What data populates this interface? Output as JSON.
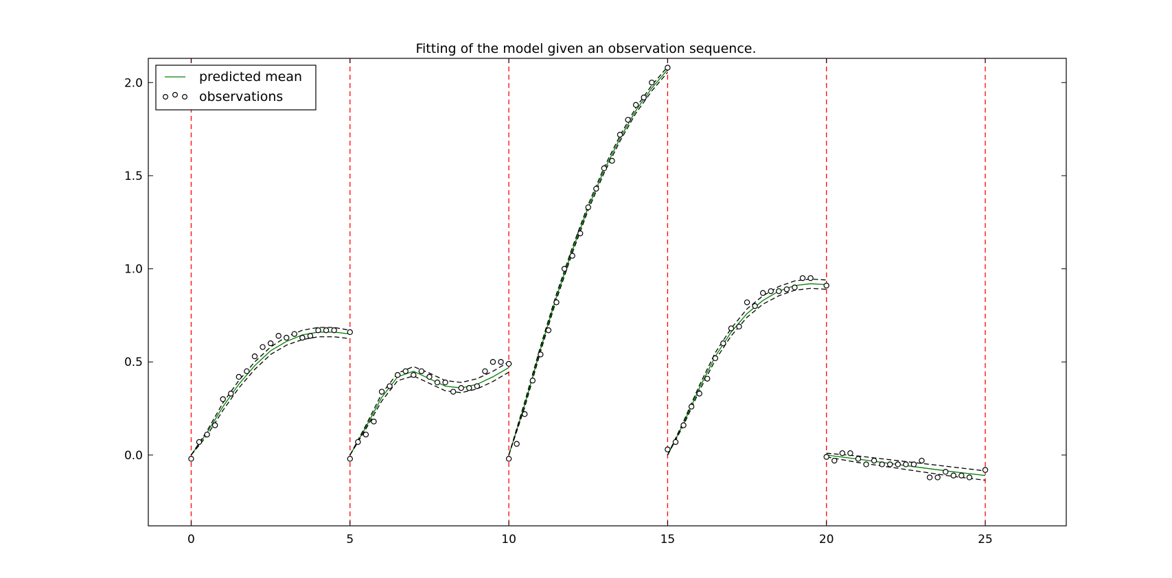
{
  "chart_data": {
    "type": "line",
    "title": "Fitting of the model given an observation sequence.",
    "xlabel": "",
    "ylabel": "",
    "xlim": [
      -1.35,
      27.55
    ],
    "ylim": [
      -0.38,
      2.13
    ],
    "x_ticks": [
      "0",
      "5",
      "10",
      "15",
      "20",
      "25"
    ],
    "y_ticks": [
      "0.0",
      "0.5",
      "1.0",
      "1.5",
      "2.0"
    ],
    "grid": false,
    "legend_location": "upper-left",
    "legend": [
      {
        "label": "predicted mean",
        "style": "green solid line"
      },
      {
        "label": "observations",
        "style": "open black circles"
      }
    ],
    "colors": {
      "predicted_mean": "#008000",
      "confidence_band": "#000000",
      "segment_boundary": "#ff0000",
      "observations": "#000000"
    },
    "segment_boundaries": [
      0,
      5,
      10,
      15,
      20,
      25
    ],
    "series": [
      {
        "name": "predicted mean",
        "kind": "line",
        "segments": [
          {
            "x": [
              0,
              0.5,
              1,
              1.5,
              2,
              2.5,
              3,
              3.5,
              4,
              4.5,
              5
            ],
            "y": [
              0.0,
              0.12,
              0.26,
              0.38,
              0.48,
              0.56,
              0.61,
              0.645,
              0.66,
              0.66,
              0.65
            ]
          },
          {
            "x": [
              5,
              5.5,
              6,
              6.5,
              7,
              7.5,
              8,
              8.5,
              9,
              9.5,
              10
            ],
            "y": [
              0.0,
              0.15,
              0.31,
              0.42,
              0.45,
              0.41,
              0.37,
              0.36,
              0.38,
              0.42,
              0.47
            ]
          },
          {
            "x": [
              10,
              10.5,
              11,
              11.5,
              12,
              12.5,
              13,
              13.5,
              14,
              14.5,
              15
            ],
            "y": [
              0.0,
              0.27,
              0.57,
              0.85,
              1.1,
              1.33,
              1.53,
              1.7,
              1.85,
              1.97,
              2.07
            ]
          },
          {
            "x": [
              15,
              15.5,
              16,
              16.5,
              17,
              17.5,
              18,
              18.5,
              19,
              19.5,
              20
            ],
            "y": [
              0.0,
              0.17,
              0.36,
              0.53,
              0.66,
              0.76,
              0.83,
              0.88,
              0.91,
              0.92,
              0.915
            ]
          },
          {
            "x": [
              20,
              21,
              22,
              23,
              24,
              25
            ],
            "y": [
              0.0,
              -0.022,
              -0.045,
              -0.068,
              -0.09,
              -0.11
            ]
          }
        ]
      },
      {
        "name": "",
        "kind": "confidence-upper",
        "segments": [
          {
            "x": [
              0,
              0.5,
              1,
              1.5,
              2,
              2.5,
              3,
              3.5,
              4,
              4.5,
              5
            ],
            "y": [
              0.0,
              0.13,
              0.28,
              0.4,
              0.5,
              0.58,
              0.635,
              0.67,
              0.685,
              0.685,
              0.67
            ]
          },
          {
            "x": [
              5,
              5.5,
              6,
              6.5,
              7,
              7.5,
              8,
              8.5,
              9,
              9.5,
              10
            ],
            "y": [
              0.0,
              0.16,
              0.33,
              0.44,
              0.475,
              0.44,
              0.4,
              0.39,
              0.41,
              0.45,
              0.5
            ]
          },
          {
            "x": [
              10,
              10.5,
              11,
              11.5,
              12,
              12.5,
              13,
              13.5,
              14,
              14.5,
              15
            ],
            "y": [
              0.0,
              0.285,
              0.585,
              0.865,
              1.115,
              1.345,
              1.545,
              1.715,
              1.865,
              1.985,
              2.085
            ]
          },
          {
            "x": [
              15,
              15.5,
              16,
              16.5,
              17,
              17.5,
              18,
              18.5,
              19,
              19.5,
              20
            ],
            "y": [
              0.0,
              0.18,
              0.375,
              0.55,
              0.68,
              0.785,
              0.855,
              0.905,
              0.935,
              0.945,
              0.94
            ]
          },
          {
            "x": [
              20,
              21,
              22,
              23,
              24,
              25
            ],
            "y": [
              0.01,
              -0.005,
              -0.025,
              -0.045,
              -0.065,
              -0.085
            ]
          }
        ]
      },
      {
        "name": "",
        "kind": "confidence-lower",
        "segments": [
          {
            "x": [
              0,
              0.5,
              1,
              1.5,
              2,
              2.5,
              3,
              3.5,
              4,
              4.5,
              5
            ],
            "y": [
              0.0,
              0.105,
              0.24,
              0.36,
              0.46,
              0.54,
              0.59,
              0.62,
              0.635,
              0.635,
              0.625
            ]
          },
          {
            "x": [
              5,
              5.5,
              6,
              6.5,
              7,
              7.5,
              8,
              8.5,
              9,
              9.5,
              10
            ],
            "y": [
              0.0,
              0.14,
              0.29,
              0.4,
              0.425,
              0.385,
              0.345,
              0.335,
              0.355,
              0.395,
              0.445
            ]
          },
          {
            "x": [
              10,
              10.5,
              11,
              11.5,
              12,
              12.5,
              13,
              13.5,
              14,
              14.5,
              15
            ],
            "y": [
              0.0,
              0.255,
              0.555,
              0.835,
              1.085,
              1.315,
              1.515,
              1.685,
              1.835,
              1.955,
              2.055
            ]
          },
          {
            "x": [
              15,
              15.5,
              16,
              16.5,
              17,
              17.5,
              18,
              18.5,
              19,
              19.5,
              20
            ],
            "y": [
              0.0,
              0.16,
              0.345,
              0.51,
              0.64,
              0.74,
              0.81,
              0.855,
              0.885,
              0.895,
              0.89
            ]
          },
          {
            "x": [
              20,
              21,
              22,
              23,
              24,
              25
            ],
            "y": [
              -0.01,
              -0.04,
              -0.065,
              -0.09,
              -0.115,
              -0.135
            ]
          }
        ]
      },
      {
        "name": "observations",
        "kind": "scatter",
        "points": [
          [
            0.0,
            -0.02
          ],
          [
            0.25,
            0.07
          ],
          [
            0.5,
            0.11
          ],
          [
            0.75,
            0.16
          ],
          [
            1.0,
            0.3
          ],
          [
            1.25,
            0.33
          ],
          [
            1.5,
            0.42
          ],
          [
            1.75,
            0.45
          ],
          [
            2.0,
            0.53
          ],
          [
            2.25,
            0.58
          ],
          [
            2.5,
            0.6
          ],
          [
            2.75,
            0.64
          ],
          [
            3.0,
            0.63
          ],
          [
            3.25,
            0.65
          ],
          [
            3.5,
            0.63
          ],
          [
            3.75,
            0.64
          ],
          [
            4.0,
            0.67
          ],
          [
            4.25,
            0.67
          ],
          [
            4.5,
            0.67
          ],
          [
            5.0,
            0.66
          ],
          [
            5.0,
            -0.02
          ],
          [
            5.25,
            0.07
          ],
          [
            5.5,
            0.11
          ],
          [
            5.75,
            0.18
          ],
          [
            6.0,
            0.34
          ],
          [
            6.25,
            0.37
          ],
          [
            6.5,
            0.43
          ],
          [
            6.75,
            0.45
          ],
          [
            7.0,
            0.43
          ],
          [
            7.25,
            0.45
          ],
          [
            7.5,
            0.42
          ],
          [
            7.75,
            0.39
          ],
          [
            8.0,
            0.39
          ],
          [
            8.25,
            0.34
          ],
          [
            8.5,
            0.36
          ],
          [
            8.75,
            0.36
          ],
          [
            9.0,
            0.37
          ],
          [
            9.25,
            0.45
          ],
          [
            9.5,
            0.5
          ],
          [
            9.75,
            0.5
          ],
          [
            10.0,
            0.49
          ],
          [
            10.0,
            -0.02
          ],
          [
            10.25,
            0.06
          ],
          [
            10.5,
            0.22
          ],
          [
            10.75,
            0.4
          ],
          [
            11.0,
            0.54
          ],
          [
            11.25,
            0.67
          ],
          [
            11.5,
            0.82
          ],
          [
            11.75,
            1.0
          ],
          [
            12.0,
            1.07
          ],
          [
            12.25,
            1.19
          ],
          [
            12.5,
            1.33
          ],
          [
            12.75,
            1.43
          ],
          [
            13.0,
            1.54
          ],
          [
            13.25,
            1.58
          ],
          [
            13.5,
            1.72
          ],
          [
            13.75,
            1.8
          ],
          [
            14.0,
            1.88
          ],
          [
            14.25,
            1.92
          ],
          [
            14.5,
            2.0
          ],
          [
            15.0,
            2.08
          ],
          [
            15.0,
            0.03
          ],
          [
            15.25,
            0.07
          ],
          [
            15.5,
            0.16
          ],
          [
            15.75,
            0.26
          ],
          [
            16.0,
            0.33
          ],
          [
            16.25,
            0.41
          ],
          [
            16.5,
            0.52
          ],
          [
            16.75,
            0.6
          ],
          [
            17.0,
            0.68
          ],
          [
            17.25,
            0.69
          ],
          [
            17.5,
            0.82
          ],
          [
            17.75,
            0.8
          ],
          [
            18.0,
            0.87
          ],
          [
            18.25,
            0.88
          ],
          [
            18.5,
            0.88
          ],
          [
            18.75,
            0.89
          ],
          [
            19.0,
            0.9
          ],
          [
            19.25,
            0.95
          ],
          [
            19.5,
            0.95
          ],
          [
            20.0,
            0.91
          ],
          [
            20.0,
            -0.01
          ],
          [
            20.25,
            -0.03
          ],
          [
            20.5,
            0.01
          ],
          [
            20.75,
            0.01
          ],
          [
            21.0,
            -0.02
          ],
          [
            21.25,
            -0.05
          ],
          [
            21.5,
            -0.03
          ],
          [
            21.75,
            -0.05
          ],
          [
            22.0,
            -0.05
          ],
          [
            22.25,
            -0.05
          ],
          [
            22.5,
            -0.05
          ],
          [
            22.75,
            -0.05
          ],
          [
            23.0,
            -0.03
          ],
          [
            23.25,
            -0.12
          ],
          [
            23.5,
            -0.12
          ],
          [
            23.75,
            -0.09
          ],
          [
            24.0,
            -0.11
          ],
          [
            24.25,
            -0.11
          ],
          [
            24.5,
            -0.12
          ],
          [
            25.0,
            -0.08
          ]
        ]
      }
    ]
  }
}
